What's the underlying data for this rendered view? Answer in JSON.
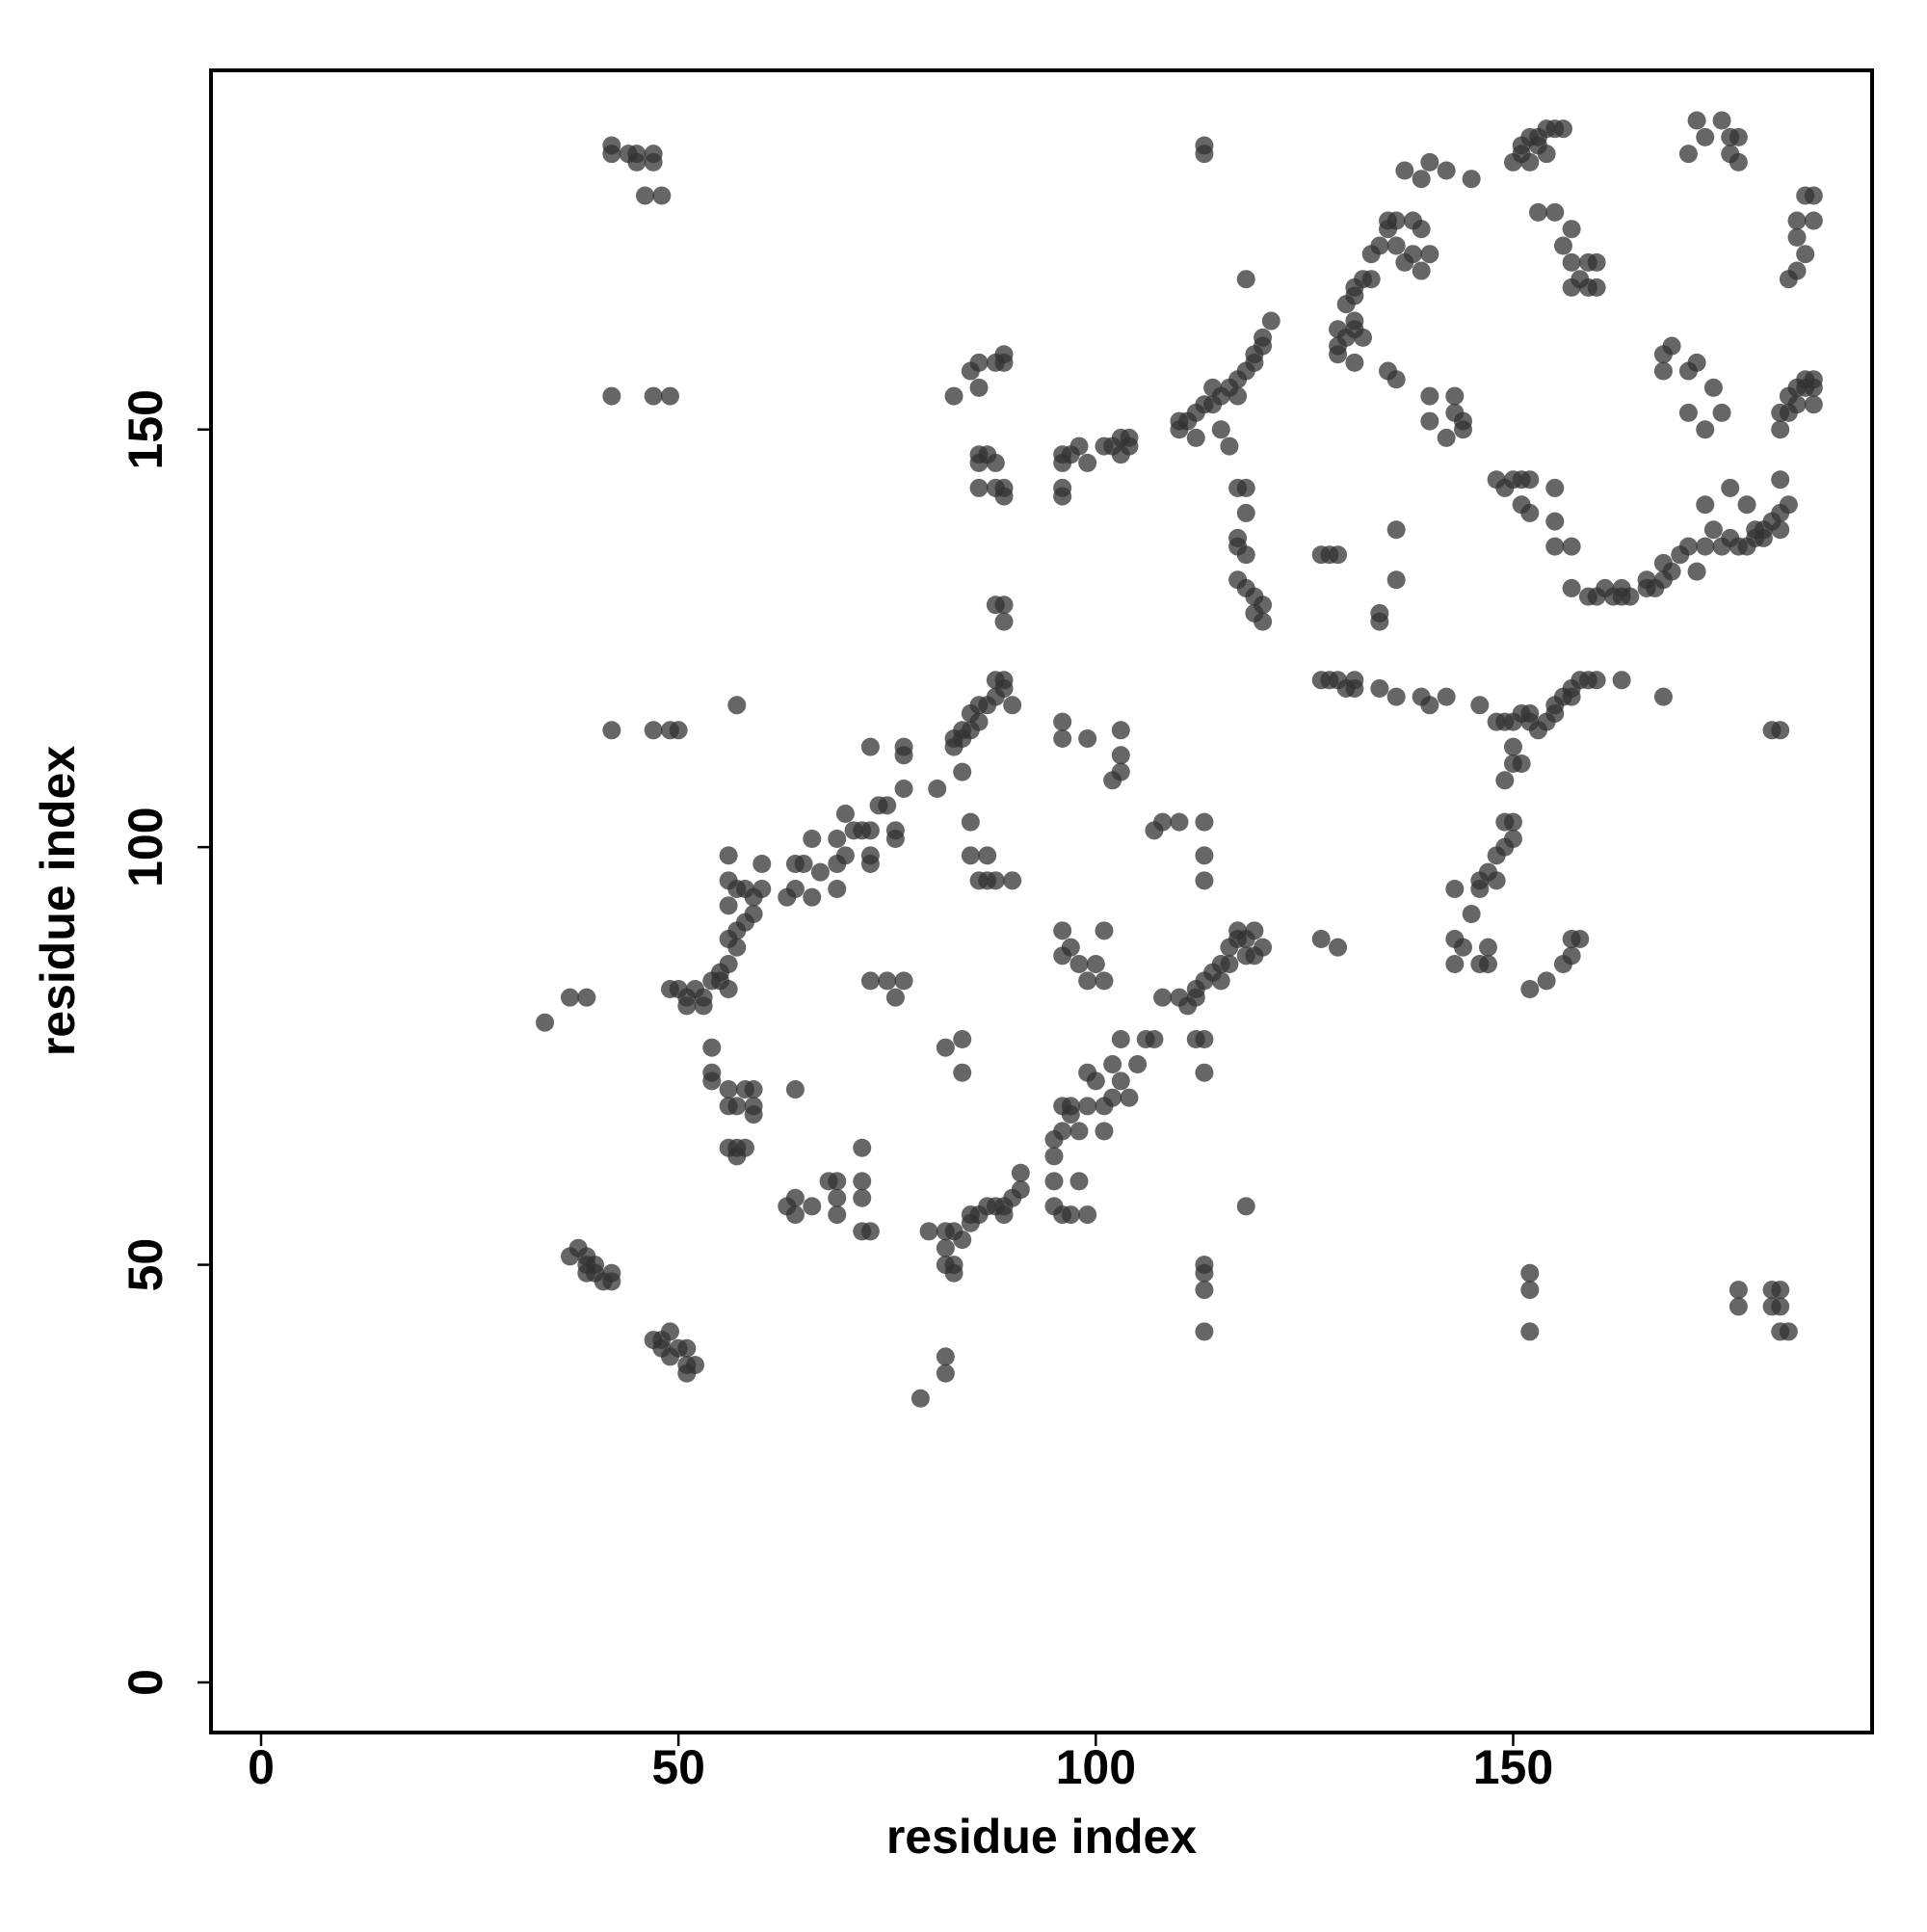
{
  "chart_data": {
    "type": "scatter",
    "xlabel": "residue index",
    "ylabel": "residue index",
    "color": "#333333",
    "xlim": [
      -6,
      193
    ],
    "ylim": [
      -6,
      193
    ],
    "xticks": [
      0,
      50,
      100,
      150
    ],
    "yticks": [
      0,
      50,
      100,
      150
    ],
    "x": [
      42,
      42,
      44,
      45,
      47,
      47,
      45,
      46,
      48,
      42,
      47,
      49,
      42,
      47,
      49,
      50,
      34,
      37,
      39,
      37,
      38,
      39,
      39,
      40,
      40,
      41,
      42,
      42,
      39,
      47,
      48,
      49,
      48,
      49,
      50,
      51,
      51,
      52,
      51,
      49,
      50,
      51,
      52,
      51,
      53,
      53,
      54,
      55,
      55,
      56,
      54,
      54,
      54,
      56,
      56,
      57,
      58,
      59,
      59,
      59,
      56,
      57,
      58,
      57,
      64,
      56,
      56,
      57,
      58,
      59,
      60,
      56,
      57,
      58,
      59,
      60,
      56,
      57,
      56,
      57,
      63,
      64,
      64,
      66,
      65,
      67,
      66,
      69,
      69,
      70,
      69,
      70,
      71,
      72,
      73,
      73,
      73,
      74,
      75,
      76,
      76,
      77,
      77,
      77,
      73,
      63,
      64,
      64,
      66,
      68,
      69,
      69,
      69,
      72,
      72,
      73,
      72,
      72,
      73,
      75,
      76,
      77,
      80,
      79,
      83,
      83,
      84,
      84,
      85,
      86,
      85,
      86,
      87,
      88,
      89,
      89,
      88,
      90,
      84,
      81,
      85,
      87,
      85,
      86,
      87,
      88,
      90,
      84,
      84,
      82,
      82,
      83,
      82,
      84,
      85,
      85,
      86,
      87,
      88,
      89,
      90,
      91,
      91,
      89,
      82,
      83,
      83,
      82,
      82,
      95,
      95,
      96,
      97,
      99,
      98,
      95,
      95,
      96,
      97,
      98,
      99,
      100,
      99,
      101,
      101,
      102,
      102,
      103,
      103,
      104,
      105,
      106,
      107,
      97,
      96,
      96,
      96,
      97,
      98,
      99,
      100,
      101,
      101,
      96,
      96,
      99,
      103,
      103,
      102,
      103,
      86,
      85,
      86,
      88,
      89,
      89,
      83,
      86,
      86,
      87,
      88,
      86,
      88,
      89,
      89,
      88,
      89,
      89,
      96,
      96,
      97,
      98,
      96,
      96,
      99,
      101,
      102,
      103,
      103,
      104,
      104,
      107,
      108,
      110,
      113,
      113,
      113,
      108,
      110,
      112,
      112,
      113,
      114,
      115,
      115,
      116,
      116,
      117,
      117,
      118,
      118,
      119,
      120,
      119,
      113,
      113,
      112,
      111,
      113,
      113,
      113,
      113,
      118,
      113,
      113,
      110,
      110,
      111,
      112,
      113,
      114,
      115,
      114,
      116,
      117,
      118,
      119,
      120,
      120,
      121,
      119,
      117,
      115,
      116,
      112,
      118,
      117,
      118,
      118,
      117,
      117,
      118,
      117,
      118,
      119,
      119,
      120,
      120,
      127,
      128,
      129,
      127,
      129,
      127,
      128,
      129,
      130,
      131,
      131,
      134,
      136,
      139,
      140,
      142,
      146,
      148,
      149,
      150,
      151,
      152,
      152,
      153,
      154,
      155,
      155,
      156,
      157,
      157,
      158,
      159,
      160,
      163,
      168,
      150,
      150,
      151,
      149,
      134,
      134,
      136,
      136,
      129,
      129,
      129,
      130,
      131,
      131,
      132,
      131,
      130,
      131,
      132,
      133,
      133,
      134,
      135,
      135,
      136,
      136,
      137,
      138,
      139,
      139,
      139,
      140,
      142,
      145,
      137,
      138,
      140,
      131,
      135,
      136,
      140,
      140,
      143,
      143,
      144,
      144,
      142,
      150,
      151,
      151,
      152,
      153,
      153,
      154,
      155,
      156,
      152,
      154,
      153,
      155,
      157,
      156,
      157,
      159,
      160,
      157,
      159,
      160,
      158,
      175,
      176,
      176,
      177,
      177,
      173,
      172,
      171,
      185,
      186,
      186,
      184,
      184,
      185,
      184,
      183,
      168,
      168,
      169,
      171,
      172,
      171,
      174,
      175,
      173,
      182,
      182,
      183,
      184,
      185,
      185,
      186,
      186,
      183,
      184,
      186,
      148,
      149,
      150,
      151,
      152,
      155,
      151,
      152,
      155,
      155,
      157,
      157,
      159,
      160,
      161,
      162,
      163,
      164,
      163,
      166,
      168,
      168,
      169,
      170,
      171,
      172,
      173,
      174,
      175,
      176,
      177,
      178,
      179,
      179,
      180,
      181,
      182,
      183,
      182,
      182,
      167,
      166,
      176,
      178,
      173,
      180,
      149,
      150,
      148,
      147,
      146,
      146,
      148,
      143,
      143,
      144,
      146,
      147,
      149,
      150,
      145,
      154,
      156,
      157,
      157,
      158,
      152,
      143,
      147,
      152,
      152,
      152,
      177,
      177,
      181,
      182,
      181,
      182,
      182,
      183,
      181,
      182
    ],
    "values": [
      184,
      183,
      183,
      183,
      183,
      182,
      182,
      178,
      178,
      154,
      154,
      154,
      114,
      114,
      114,
      114,
      79,
      82,
      82,
      51,
      52,
      51,
      50,
      50,
      49,
      48,
      49,
      48,
      49,
      41,
      41,
      42,
      40,
      39,
      40,
      40,
      38,
      38,
      37,
      83,
      83,
      82,
      83,
      81,
      82,
      81,
      84,
      85,
      84,
      83,
      76,
      72,
      73,
      71,
      69,
      69,
      71,
      71,
      69,
      68,
      64,
      64,
      64,
      63,
      71,
      96,
      99,
      95,
      95,
      94,
      95,
      93,
      90,
      91,
      92,
      98,
      89,
      88,
      86,
      117,
      94,
      95,
      98,
      94,
      98,
      97,
      101,
      95,
      98,
      99,
      101,
      104,
      102,
      102,
      99,
      98,
      102,
      105,
      105,
      101,
      102,
      107,
      111,
      112,
      112,
      57,
      58,
      56,
      57,
      60,
      58,
      60,
      56,
      60,
      58,
      54,
      54,
      64,
      84,
      84,
      82,
      84,
      54,
      34,
      112,
      113,
      113,
      114,
      114,
      115,
      116,
      117,
      117,
      118,
      119,
      120,
      120,
      117,
      109,
      107,
      99,
      99,
      103,
      96,
      96,
      96,
      96,
      77,
      73,
      76,
      54,
      54,
      52,
      53,
      55,
      56,
      56,
      57,
      57,
      56,
      58,
      59,
      61,
      57,
      50,
      49,
      50,
      39,
      37,
      60,
      57,
      56,
      56,
      56,
      60,
      63,
      65,
      66,
      68,
      66,
      73,
      72,
      69,
      69,
      66,
      70,
      74,
      72,
      77,
      70,
      74,
      77,
      77,
      69,
      69,
      90,
      87,
      88,
      86,
      84,
      86,
      84,
      90,
      115,
      113,
      113,
      111,
      109,
      108,
      114,
      155,
      157,
      158,
      158,
      159,
      158,
      154,
      147,
      146,
      147,
      146,
      143,
      143,
      142,
      143,
      129,
      129,
      127,
      146,
      147,
      147,
      148,
      143,
      142,
      146,
      148,
      148,
      149,
      147,
      148,
      149,
      102,
      103,
      103,
      103,
      99,
      96,
      82,
      82,
      82,
      83,
      84,
      85,
      84,
      86,
      86,
      88,
      89,
      90,
      87,
      89,
      90,
      88,
      87,
      77,
      73,
      77,
      81,
      50,
      49,
      47,
      42,
      57,
      183,
      184,
      151,
      150,
      151,
      152,
      153,
      153,
      154,
      155,
      155,
      156,
      157,
      158,
      160,
      161,
      163,
      159,
      154,
      150,
      148,
      149,
      168,
      143,
      143,
      140,
      137,
      136,
      135,
      132,
      131,
      130,
      128,
      127,
      129,
      135,
      135,
      135,
      89,
      88,
      120,
      120,
      120,
      119,
      120,
      119,
      119,
      118,
      118,
      117,
      118,
      117,
      115,
      115,
      115,
      116,
      116,
      115,
      114,
      115,
      116,
      117,
      118,
      118,
      119,
      120,
      120,
      120,
      120,
      118,
      112,
      110,
      110,
      108,
      127,
      128,
      138,
      132,
      160,
      159,
      162,
      161,
      162,
      158,
      161,
      163,
      165,
      167,
      168,
      168,
      171,
      172,
      174,
      175,
      175,
      172,
      170,
      171,
      169,
      174,
      180,
      182,
      181,
      180,
      181,
      175,
      171,
      166,
      157,
      156,
      154,
      151,
      154,
      152,
      151,
      150,
      149,
      182,
      183,
      184,
      185,
      184,
      185,
      186,
      186,
      186,
      182,
      183,
      176,
      176,
      174,
      172,
      170,
      170,
      170,
      167,
      167,
      167,
      168,
      187,
      185,
      183,
      185,
      182,
      185,
      187,
      183,
      178,
      178,
      175,
      175,
      173,
      171,
      169,
      168,
      159,
      157,
      160,
      157,
      158,
      152,
      155,
      152,
      150,
      150,
      152,
      154,
      155,
      155,
      156,
      155,
      156,
      152,
      153,
      153,
      144,
      143,
      144,
      144,
      144,
      143,
      141,
      140,
      139,
      136,
      136,
      131,
      130,
      130,
      131,
      130,
      130,
      130,
      131,
      131,
      132,
      134,
      133,
      135,
      136,
      133,
      136,
      138,
      136,
      137,
      136,
      136,
      138,
      137,
      137,
      139,
      138,
      141,
      144,
      140,
      131,
      132,
      143,
      141,
      141,
      138,
      100,
      101,
      99,
      97,
      95,
      96,
      96,
      95,
      89,
      88,
      86,
      88,
      103,
      103,
      92,
      84,
      86,
      87,
      89,
      89,
      83,
      86,
      86,
      49,
      47,
      42,
      47,
      45,
      47,
      47,
      45,
      45,
      42,
      42,
      114,
      114
    ]
  }
}
